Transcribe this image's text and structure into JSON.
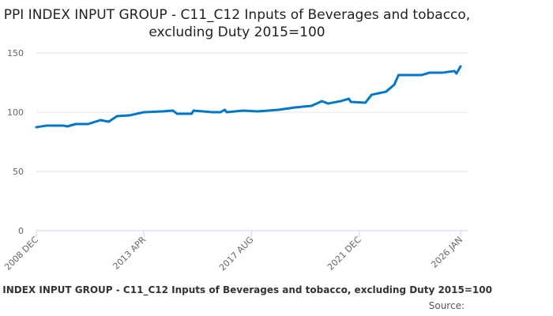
{
  "chart_data": {
    "type": "line",
    "title": "PPI INDEX INPUT GROUP - C11_C12 Inputs of Beverages and tobacco, excluding Duty 2015=100",
    "footer": "PPI INDEX INPUT GROUP - C11_C12 Inputs of Beverages and tobacco, excluding Duty 2015=100",
    "source_label": "Source:",
    "xlabel": "",
    "ylabel": "",
    "ylim": [
      0,
      150
    ],
    "yticks": [
      0,
      50,
      100,
      150
    ],
    "xticks": [
      {
        "label": "2008 DEC",
        "month": 0
      },
      {
        "label": "2013 APR",
        "month": 52
      },
      {
        "label": "2017 AUG",
        "month": 104
      },
      {
        "label": "2021 DEC",
        "month": 156
      },
      {
        "label": "2026 JAN",
        "month": 205
      }
    ],
    "series": [
      {
        "name": "C11_C12",
        "color": "#0077c8",
        "months": [
          0,
          5,
          13,
          15,
          19,
          25,
          31,
          35,
          39,
          45,
          52,
          61,
          66,
          68,
          75,
          76,
          85,
          89,
          91,
          92,
          100,
          107,
          117,
          125,
          133,
          138,
          141,
          147,
          151,
          152,
          159,
          162,
          169,
          173,
          175,
          186,
          190,
          196,
          202,
          203,
          205
        ],
        "values": [
          87.3,
          88.7,
          88.7,
          88,
          90,
          90,
          93.3,
          92,
          96.7,
          97.3,
          100,
          100.7,
          101.3,
          98.7,
          98.7,
          101.3,
          100,
          100,
          102,
          100,
          101.3,
          100.7,
          102,
          104,
          105.3,
          109.3,
          107.3,
          109.3,
          111.3,
          108.7,
          108,
          114.7,
          117.3,
          123.3,
          131.3,
          131.3,
          133.3,
          133.3,
          134.7,
          132.7,
          138.7
        ]
      }
    ]
  }
}
